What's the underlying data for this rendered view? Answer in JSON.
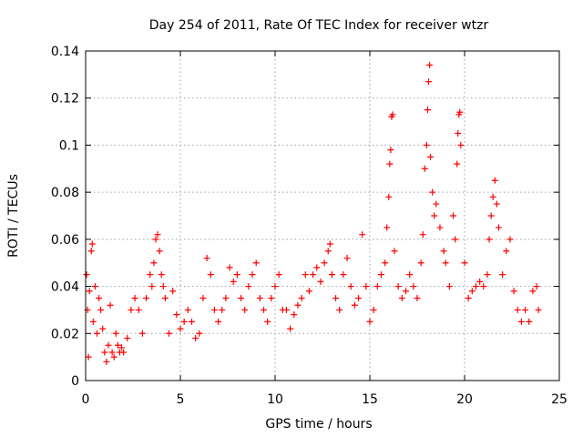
{
  "chart_data": {
    "type": "scatter",
    "title": "Day 254 of 2011, Rate Of TEC Index for receiver wtzr",
    "xlabel": "GPS time / hours",
    "ylabel": "ROTI / TECUs",
    "xlim": [
      0,
      25
    ],
    "ylim": [
      0,
      0.14
    ],
    "xticks": [
      "0",
      "5",
      "10",
      "15",
      "20",
      "25"
    ],
    "yticks": [
      "0",
      "0.02",
      "0.04",
      "0.06",
      "0.08",
      "0.1",
      "0.12",
      "0.14"
    ],
    "grid": true,
    "marker": "plus",
    "color": "#ff0000",
    "series": [
      {
        "points": [
          [
            0.05,
            0.045
          ],
          [
            0.1,
            0.03
          ],
          [
            0.15,
            0.01
          ],
          [
            0.2,
            0.038
          ],
          [
            0.3,
            0.055
          ],
          [
            0.35,
            0.058
          ],
          [
            0.4,
            0.025
          ],
          [
            0.5,
            0.04
          ],
          [
            0.6,
            0.02
          ],
          [
            0.7,
            0.035
          ],
          [
            0.8,
            0.03
          ],
          [
            0.9,
            0.022
          ],
          [
            1.0,
            0.012
          ],
          [
            1.1,
            0.008
          ],
          [
            1.2,
            0.015
          ],
          [
            1.3,
            0.032
          ],
          [
            1.4,
            0.012
          ],
          [
            1.5,
            0.01
          ],
          [
            1.6,
            0.02
          ],
          [
            1.7,
            0.015
          ],
          [
            1.8,
            0.012
          ],
          [
            1.9,
            0.014
          ],
          [
            2.0,
            0.012
          ],
          [
            2.2,
            0.018
          ],
          [
            2.4,
            0.03
          ],
          [
            2.6,
            0.035
          ],
          [
            2.8,
            0.03
          ],
          [
            3.0,
            0.02
          ],
          [
            3.2,
            0.035
          ],
          [
            3.4,
            0.045
          ],
          [
            3.5,
            0.04
          ],
          [
            3.6,
            0.05
          ],
          [
            3.7,
            0.06
          ],
          [
            3.8,
            0.062
          ],
          [
            3.9,
            0.055
          ],
          [
            4.0,
            0.045
          ],
          [
            4.1,
            0.04
          ],
          [
            4.2,
            0.035
          ],
          [
            4.4,
            0.02
          ],
          [
            4.6,
            0.038
          ],
          [
            4.8,
            0.028
          ],
          [
            5.0,
            0.022
          ],
          [
            5.2,
            0.025
          ],
          [
            5.4,
            0.03
          ],
          [
            5.6,
            0.025
          ],
          [
            5.8,
            0.018
          ],
          [
            6.0,
            0.02
          ],
          [
            6.2,
            0.035
          ],
          [
            6.4,
            0.052
          ],
          [
            6.6,
            0.045
          ],
          [
            6.8,
            0.03
          ],
          [
            7.0,
            0.025
          ],
          [
            7.2,
            0.03
          ],
          [
            7.4,
            0.035
          ],
          [
            7.6,
            0.048
          ],
          [
            7.8,
            0.042
          ],
          [
            8.0,
            0.045
          ],
          [
            8.2,
            0.035
          ],
          [
            8.4,
            0.03
          ],
          [
            8.6,
            0.04
          ],
          [
            8.8,
            0.045
          ],
          [
            9.0,
            0.05
          ],
          [
            9.2,
            0.035
          ],
          [
            9.4,
            0.03
          ],
          [
            9.6,
            0.025
          ],
          [
            9.8,
            0.035
          ],
          [
            10.0,
            0.04
          ],
          [
            10.2,
            0.045
          ],
          [
            10.4,
            0.03
          ],
          [
            10.6,
            0.03
          ],
          [
            10.8,
            0.022
          ],
          [
            11.0,
            0.028
          ],
          [
            11.2,
            0.032
          ],
          [
            11.4,
            0.035
          ],
          [
            11.6,
            0.045
          ],
          [
            11.8,
            0.038
          ],
          [
            12.0,
            0.045
          ],
          [
            12.2,
            0.048
          ],
          [
            12.4,
            0.042
          ],
          [
            12.6,
            0.05
          ],
          [
            12.8,
            0.055
          ],
          [
            12.9,
            0.058
          ],
          [
            13.0,
            0.045
          ],
          [
            13.2,
            0.035
          ],
          [
            13.4,
            0.03
          ],
          [
            13.6,
            0.045
          ],
          [
            13.8,
            0.052
          ],
          [
            14.0,
            0.04
          ],
          [
            14.2,
            0.032
          ],
          [
            14.4,
            0.035
          ],
          [
            14.6,
            0.062
          ],
          [
            14.8,
            0.04
          ],
          [
            15.0,
            0.025
          ],
          [
            15.2,
            0.03
          ],
          [
            15.4,
            0.04
          ],
          [
            15.6,
            0.045
          ],
          [
            15.8,
            0.05
          ],
          [
            15.9,
            0.065
          ],
          [
            16.0,
            0.078
          ],
          [
            16.05,
            0.092
          ],
          [
            16.1,
            0.098
          ],
          [
            16.15,
            0.112
          ],
          [
            16.2,
            0.113
          ],
          [
            16.3,
            0.055
          ],
          [
            16.5,
            0.04
          ],
          [
            16.7,
            0.035
          ],
          [
            16.9,
            0.038
          ],
          [
            17.1,
            0.045
          ],
          [
            17.3,
            0.04
          ],
          [
            17.5,
            0.035
          ],
          [
            17.7,
            0.05
          ],
          [
            17.8,
            0.062
          ],
          [
            17.9,
            0.09
          ],
          [
            18.0,
            0.1
          ],
          [
            18.05,
            0.115
          ],
          [
            18.1,
            0.127
          ],
          [
            18.15,
            0.134
          ],
          [
            18.2,
            0.095
          ],
          [
            18.3,
            0.08
          ],
          [
            18.4,
            0.07
          ],
          [
            18.5,
            0.075
          ],
          [
            18.7,
            0.065
          ],
          [
            18.9,
            0.055
          ],
          [
            19.0,
            0.05
          ],
          [
            19.2,
            0.04
          ],
          [
            19.4,
            0.07
          ],
          [
            19.5,
            0.06
          ],
          [
            19.6,
            0.092
          ],
          [
            19.65,
            0.105
          ],
          [
            19.7,
            0.113
          ],
          [
            19.75,
            0.114
          ],
          [
            19.8,
            0.1
          ],
          [
            20.0,
            0.05
          ],
          [
            20.2,
            0.035
          ],
          [
            20.4,
            0.038
          ],
          [
            20.6,
            0.04
          ],
          [
            20.8,
            0.042
          ],
          [
            21.0,
            0.04
          ],
          [
            21.2,
            0.045
          ],
          [
            21.3,
            0.06
          ],
          [
            21.4,
            0.07
          ],
          [
            21.5,
            0.078
          ],
          [
            21.6,
            0.085
          ],
          [
            21.7,
            0.075
          ],
          [
            21.8,
            0.065
          ],
          [
            22.0,
            0.045
          ],
          [
            22.2,
            0.055
          ],
          [
            22.4,
            0.06
          ],
          [
            22.6,
            0.038
          ],
          [
            22.8,
            0.03
          ],
          [
            23.0,
            0.025
          ],
          [
            23.2,
            0.03
          ],
          [
            23.4,
            0.025
          ],
          [
            23.6,
            0.038
          ],
          [
            23.8,
            0.04
          ],
          [
            23.9,
            0.03
          ]
        ]
      }
    ]
  }
}
